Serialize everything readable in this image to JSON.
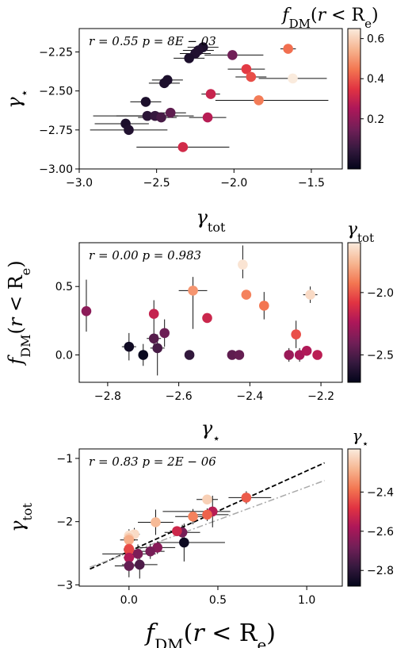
{
  "colors": {
    "low": "#03051a",
    "stops": [
      "#03051a",
      "#35193e",
      "#701f57",
      "#ad1759",
      "#e13342",
      "#f37651",
      "#f6b48f",
      "#faebdd"
    ]
  },
  "chart_data": [
    {
      "id": "p1",
      "type": "scatter",
      "xlabel": "γtot",
      "xlabel_main": "γ",
      "xlabel_sub": "tot",
      "ylabel": "γ⋆",
      "ylabel_main": "γ",
      "ylabel_sub": "⋆",
      "xlim": [
        -3.0,
        -1.3
      ],
      "ylim": [
        -3.0,
        -2.1
      ],
      "xticks": [
        -3.0,
        -2.5,
        -2.0,
        -1.5
      ],
      "xtick_labels": [
        "−3.0",
        "−2.5",
        "−2.0",
        "−1.5"
      ],
      "yticks": [
        -3.0,
        -2.75,
        -2.5,
        -2.25
      ],
      "ytick_labels": [
        "−3.00",
        "−2.75",
        "−2.50",
        "−2.25"
      ],
      "stats_text": "r = 0.55  p = 8E − 03",
      "colorbar": {
        "label": "fDM(r < Re)",
        "range": [
          -0.05,
          0.65
        ],
        "ticks": [
          0.2,
          0.4,
          0.6
        ],
        "tick_labels": [
          "0.2",
          "0.4",
          "0.6"
        ]
      },
      "points": [
        {
          "x": -2.2,
          "y": -2.22,
          "xerr": [
            0.1,
            0.1
          ],
          "yerr": [
            0,
            0
          ],
          "c": 0.0
        },
        {
          "x": -2.23,
          "y": -2.24,
          "xerr": [
            0.1,
            0.1
          ],
          "yerr": [
            0,
            0
          ],
          "c": 0.01
        },
        {
          "x": -2.25,
          "y": -2.26,
          "xerr": [
            0.1,
            0.1
          ],
          "yerr": [
            0,
            0
          ],
          "c": 0.01
        },
        {
          "x": -2.29,
          "y": -2.29,
          "xerr": [
            0.1,
            0.1
          ],
          "yerr": [
            0,
            0
          ],
          "c": 0.0
        },
        {
          "x": -2.01,
          "y": -2.27,
          "xerr": [
            0.18,
            0.2
          ],
          "yerr": [
            0,
            0
          ],
          "c": 0.15
        },
        {
          "x": -1.65,
          "y": -2.23,
          "xerr": [
            0.05,
            0.05
          ],
          "yerr": [
            0,
            0
          ],
          "c": 0.44
        },
        {
          "x": -1.92,
          "y": -2.36,
          "xerr": [
            0.12,
            0.12
          ],
          "yerr": [
            0,
            0
          ],
          "c": 0.36
        },
        {
          "x": -1.89,
          "y": -2.41,
          "xerr": [
            0.1,
            0.1
          ],
          "yerr": [
            0,
            0
          ],
          "c": 0.39
        },
        {
          "x": -1.62,
          "y": -2.42,
          "xerr": [
            0.22,
            0.22
          ],
          "yerr": [
            0,
            0
          ],
          "c": 0.65
        },
        {
          "x": -2.43,
          "y": -2.43,
          "xerr": [
            0.1,
            0.1
          ],
          "yerr": [
            0,
            0
          ],
          "c": 0.0
        },
        {
          "x": -2.45,
          "y": -2.45,
          "xerr": [
            0.1,
            0.1
          ],
          "yerr": [
            0,
            0
          ],
          "c": 0.0
        },
        {
          "x": -2.15,
          "y": -2.52,
          "xerr": [
            0.06,
            0.06
          ],
          "yerr": [
            0,
            0
          ],
          "c": 0.3
        },
        {
          "x": -1.84,
          "y": -2.56,
          "xerr": [
            0.28,
            0.45
          ],
          "yerr": [
            0,
            0
          ],
          "c": 0.46
        },
        {
          "x": -2.57,
          "y": -2.57,
          "xerr": [
            0.1,
            0.1
          ],
          "yerr": [
            0,
            0
          ],
          "c": 0.0
        },
        {
          "x": -2.41,
          "y": -2.64,
          "xerr": [
            0.1,
            0.1
          ],
          "yerr": [
            0,
            0
          ],
          "c": 0.12
        },
        {
          "x": -2.56,
          "y": -2.66,
          "xerr": [
            0.35,
            0.3
          ],
          "yerr": [
            0,
            0
          ],
          "c": 0.03
        },
        {
          "x": -2.51,
          "y": -2.66,
          "xerr": [
            0.25,
            0.15
          ],
          "yerr": [
            0,
            0
          ],
          "c": 0.05
        },
        {
          "x": -2.47,
          "y": -2.67,
          "xerr": [
            0.15,
            0.1
          ],
          "yerr": [
            0,
            0
          ],
          "c": 0.08
        },
        {
          "x": -2.17,
          "y": -2.67,
          "xerr": [
            0.12,
            0.12
          ],
          "yerr": [
            0,
            0
          ],
          "c": 0.27
        },
        {
          "x": -2.7,
          "y": -2.71,
          "xerr": [
            0.2,
            0.15
          ],
          "yerr": [
            0,
            0
          ],
          "c": 0.0
        },
        {
          "x": -2.68,
          "y": -2.75,
          "xerr": [
            0.25,
            0.25
          ],
          "yerr": [
            0,
            0
          ],
          "c": 0.01
        },
        {
          "x": -2.33,
          "y": -2.86,
          "xerr": [
            0.3,
            0.3
          ],
          "yerr": [
            0,
            0
          ],
          "c": 0.32
        }
      ]
    },
    {
      "id": "p2",
      "type": "scatter",
      "xlabel": "γ⋆",
      "xlabel_main": "γ",
      "xlabel_sub": "⋆",
      "ylabel": "fDM(r < Re)",
      "xlim": [
        -2.88,
        -2.14
      ],
      "ylim": [
        -0.2,
        0.82
      ],
      "xticks": [
        -2.8,
        -2.6,
        -2.4,
        -2.2
      ],
      "xtick_labels": [
        "−2.8",
        "−2.6",
        "−2.4",
        "−2.2"
      ],
      "yticks": [
        0.0,
        0.5
      ],
      "ytick_labels": [
        "0.0",
        "0.5"
      ],
      "stats_text": "r = 0.00  p = 0.983",
      "colorbar": {
        "label": "γtot",
        "range": [
          -2.72,
          -1.6
        ],
        "ticks": [
          -2.5,
          -2.0
        ],
        "tick_labels": [
          "−2.5",
          "−2.0"
        ]
      },
      "points": [
        {
          "x": -2.86,
          "y": 0.32,
          "xerr": [
            0,
            0
          ],
          "yerr": [
            0.15,
            0.23
          ],
          "c": -2.33
        },
        {
          "x": -2.74,
          "y": 0.06,
          "xerr": [
            0.02,
            0.02
          ],
          "yerr": [
            0.1,
            0.1
          ],
          "c": -2.68
        },
        {
          "x": -2.7,
          "y": 0.0,
          "xerr": [
            0,
            0
          ],
          "yerr": [
            0.08,
            0.08
          ],
          "c": -2.7
        },
        {
          "x": -2.67,
          "y": 0.3,
          "xerr": [
            0.01,
            0.01
          ],
          "yerr": [
            0.1,
            0.1
          ],
          "c": -2.17
        },
        {
          "x": -2.67,
          "y": 0.12,
          "xerr": [
            0.02,
            0.02
          ],
          "yerr": [
            0.08,
            0.08
          ],
          "c": -2.47
        },
        {
          "x": -2.66,
          "y": 0.05,
          "xerr": [
            0.02,
            0.02
          ],
          "yerr": [
            0.2,
            0.1
          ],
          "c": -2.51
        },
        {
          "x": -2.64,
          "y": 0.16,
          "xerr": [
            0,
            0
          ],
          "yerr": [
            0.1,
            0.1
          ],
          "c": -2.41
        },
        {
          "x": -2.56,
          "y": 0.47,
          "xerr": [
            0.04,
            0.04
          ],
          "yerr": [
            0.28,
            0.1
          ],
          "c": -1.84
        },
        {
          "x": -2.57,
          "y": 0.0,
          "xerr": [
            0,
            0
          ],
          "yerr": [
            0,
            0
          ],
          "c": -2.57
        },
        {
          "x": -2.52,
          "y": 0.27,
          "xerr": [
            0,
            0
          ],
          "yerr": [
            0,
            0
          ],
          "c": -2.15
        },
        {
          "x": -2.45,
          "y": 0.0,
          "xerr": [
            0,
            0
          ],
          "yerr": [
            0,
            0
          ],
          "c": -2.45
        },
        {
          "x": -2.43,
          "y": 0.0,
          "xerr": [
            0,
            0
          ],
          "yerr": [
            0,
            0
          ],
          "c": -2.43
        },
        {
          "x": -2.42,
          "y": 0.66,
          "xerr": [
            0,
            0
          ],
          "yerr": [
            0.1,
            0.14
          ],
          "c": -1.62
        },
        {
          "x": -2.41,
          "y": 0.44,
          "xerr": [
            0,
            0
          ],
          "yerr": [
            0,
            0
          ],
          "c": -1.89
        },
        {
          "x": -2.36,
          "y": 0.36,
          "xerr": [
            0,
            0
          ],
          "yerr": [
            0.1,
            0.1
          ],
          "c": -1.92
        },
        {
          "x": -2.29,
          "y": 0.0,
          "xerr": [
            0,
            0
          ],
          "yerr": [
            0.05,
            0.05
          ],
          "c": -2.29
        },
        {
          "x": -2.27,
          "y": 0.15,
          "xerr": [
            0,
            0
          ],
          "yerr": [
            0.1,
            0.1
          ],
          "c": -2.01
        },
        {
          "x": -2.26,
          "y": 0.0,
          "xerr": [
            0,
            0
          ],
          "yerr": [
            0.05,
            0.05
          ],
          "c": -2.25
        },
        {
          "x": -2.24,
          "y": 0.03,
          "xerr": [
            0,
            0
          ],
          "yerr": [
            0.03,
            0.03
          ],
          "c": -2.23
        },
        {
          "x": -2.23,
          "y": 0.44,
          "xerr": [
            0.02,
            0.02
          ],
          "yerr": [
            0.06,
            0.06
          ],
          "c": -1.65
        },
        {
          "x": -2.21,
          "y": 0.0,
          "xerr": [
            0,
            0
          ],
          "yerr": [
            0,
            0
          ],
          "c": -2.2
        }
      ]
    },
    {
      "id": "p3",
      "type": "scatter",
      "xlabel": "fDM(r < Re)",
      "ylabel": "γtot",
      "ylabel_main": "γ",
      "ylabel_sub": "tot",
      "xlim": [
        -0.28,
        1.2
      ],
      "ylim": [
        -3.02,
        -0.85
      ],
      "xticks": [
        0.0,
        0.5,
        1.0
      ],
      "xtick_labels": [
        "0.0",
        "0.5",
        "1.0"
      ],
      "yticks": [
        -3,
        -2,
        -1
      ],
      "ytick_labels": [
        "−3",
        "−2",
        "−1"
      ],
      "stats_text": "r = 0.83  p = 2E − 06",
      "colorbar": {
        "label": "γ⋆",
        "range": [
          -2.88,
          -2.18
        ],
        "ticks": [
          -2.8,
          -2.6,
          -2.4
        ],
        "tick_labels": [
          "−2.8",
          "−2.6",
          "−2.4"
        ]
      },
      "lines": [
        {
          "style": "dashed",
          "color": "#000000",
          "x": [
            -0.22,
            1.1
          ],
          "y": [
            -2.75,
            -1.07
          ]
        },
        {
          "style": "dashdot",
          "color": "#aaaaaa",
          "x": [
            -0.22,
            1.1
          ],
          "y": [
            -2.72,
            -1.35
          ]
        }
      ],
      "points": [
        {
          "x": 0.66,
          "y": -1.62,
          "xerr": [
            0.1,
            0.14
          ],
          "yerr": [
            0.1,
            0.1
          ],
          "c": -2.42
        },
        {
          "x": 0.44,
          "y": -1.65,
          "xerr": [
            0.06,
            0.06
          ],
          "yerr": [
            0.06,
            0.06
          ],
          "c": -2.23
        },
        {
          "x": 0.47,
          "y": -1.84,
          "xerr": [
            0.28,
            0.1
          ],
          "yerr": [
            0.25,
            0.25
          ],
          "c": -2.56
        },
        {
          "x": 0.36,
          "y": -1.92,
          "xerr": [
            0.1,
            0.1
          ],
          "yerr": [
            0.12,
            0.12
          ],
          "c": -2.36
        },
        {
          "x": 0.44,
          "y": -1.89,
          "xerr": [
            0.1,
            0.12
          ],
          "yerr": [
            0.1,
            0.1
          ],
          "c": -2.41
        },
        {
          "x": 0.15,
          "y": -2.01,
          "xerr": [
            0.1,
            0.1
          ],
          "yerr": [
            0.2,
            0.2
          ],
          "c": -2.27
        },
        {
          "x": 0.3,
          "y": -2.17,
          "xerr": [
            0.1,
            0.1
          ],
          "yerr": [
            0.12,
            0.12
          ],
          "c": -2.67
        },
        {
          "x": 0.27,
          "y": -2.15,
          "xerr": [
            0.04,
            0.04
          ],
          "yerr": [
            0.06,
            0.06
          ],
          "c": -2.52
        },
        {
          "x": 0.03,
          "y": -2.2,
          "xerr": [
            0.03,
            0.03
          ],
          "yerr": [
            0.1,
            0.1
          ],
          "c": -2.21
        },
        {
          "x": 0.0,
          "y": -2.22,
          "xerr": [
            0.02,
            0.02
          ],
          "yerr": [
            0.1,
            0.1
          ],
          "c": -2.2
        },
        {
          "x": 0.0,
          "y": -2.26,
          "xerr": [
            0.03,
            0.03
          ],
          "yerr": [
            0.1,
            0.1
          ],
          "c": -2.24
        },
        {
          "x": 0.0,
          "y": -2.29,
          "xerr": [
            0.05,
            0.05
          ],
          "yerr": [
            0.1,
            0.1
          ],
          "c": -2.29
        },
        {
          "x": 0.31,
          "y": -2.33,
          "xerr": [
            0.15,
            0.23
          ],
          "yerr": [
            0.3,
            0.3
          ],
          "c": -2.86
        },
        {
          "x": 0.16,
          "y": -2.41,
          "xerr": [
            0.1,
            0.1
          ],
          "yerr": [
            0.1,
            0.1
          ],
          "c": -2.64
        },
        {
          "x": 0.0,
          "y": -2.43,
          "xerr": [
            0.03,
            0.03
          ],
          "yerr": [
            0.1,
            0.1
          ],
          "c": -2.43
        },
        {
          "x": 0.0,
          "y": -2.45,
          "xerr": [
            0.03,
            0.03
          ],
          "yerr": [
            0.1,
            0.1
          ],
          "c": -2.45
        },
        {
          "x": 0.12,
          "y": -2.47,
          "xerr": [
            0.08,
            0.08
          ],
          "yerr": [
            0.12,
            0.12
          ],
          "c": -2.67
        },
        {
          "x": 0.05,
          "y": -2.51,
          "xerr": [
            0.2,
            0.1
          ],
          "yerr": [
            0.15,
            0.15
          ],
          "c": -2.66
        },
        {
          "x": 0.0,
          "y": -2.57,
          "xerr": [
            0.03,
            0.03
          ],
          "yerr": [
            0.1,
            0.1
          ],
          "c": -2.57
        },
        {
          "x": 0.06,
          "y": -2.68,
          "xerr": [
            0.1,
            0.1
          ],
          "yerr": [
            0.22,
            0.22
          ],
          "c": -2.74
        },
        {
          "x": 0.0,
          "y": -2.7,
          "xerr": [
            0.08,
            0.08
          ],
          "yerr": [
            0.18,
            0.18
          ],
          "c": -2.7
        }
      ]
    }
  ]
}
